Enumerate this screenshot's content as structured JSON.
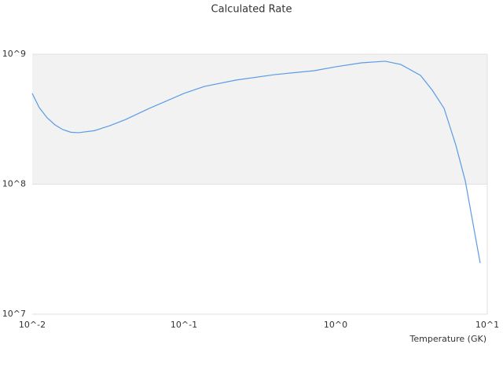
{
  "chart_data": {
    "type": "line",
    "title": "Calculated Rate",
    "x_label": "Temperature (GK)",
    "x": [
      0.01,
      0.01113,
      0.01254,
      0.01413,
      0.01591,
      0.01795,
      0.02023,
      0.02566,
      0.03258,
      0.04138,
      0.05918,
      0.1,
      0.1364,
      0.2198,
      0.399,
      0.7244,
      1,
      1.483,
      2.12,
      2.69,
      3.63,
      4.34,
      5.19,
      6.21,
      7.16,
      8.98
    ],
    "values": [
      499000000,
      388000000,
      324000000,
      286000000,
      263000000,
      251000000,
      249000000,
      258000000,
      282000000,
      315000000,
      383000000,
      499000000,
      565000000,
      632000000,
      697000000,
      747000000,
      800000000,
      858000000,
      883000000,
      834000000,
      687000000,
      528000000,
      383000000,
      199000000,
      106000000,
      24700000
    ],
    "color": "#5a9be6",
    "xlog": true,
    "ylog": true,
    "xlim": [
      0.01,
      10
    ],
    "ylim": [
      10000000,
      1000000000
    ],
    "xticks": [
      {
        "value": 0.01,
        "label": "10^-2"
      },
      {
        "value": 0.1,
        "label": "10^-1"
      },
      {
        "value": 1,
        "label": "10^0"
      },
      {
        "value": 10,
        "label": "10^1"
      }
    ],
    "yticks": [
      {
        "value": 10000000,
        "label": "10^7"
      },
      {
        "value": 100000000,
        "label": "10^8"
      },
      {
        "value": 1000000000,
        "label": "10^9"
      }
    ],
    "grid": true,
    "band_color": "#f2f2f2"
  }
}
